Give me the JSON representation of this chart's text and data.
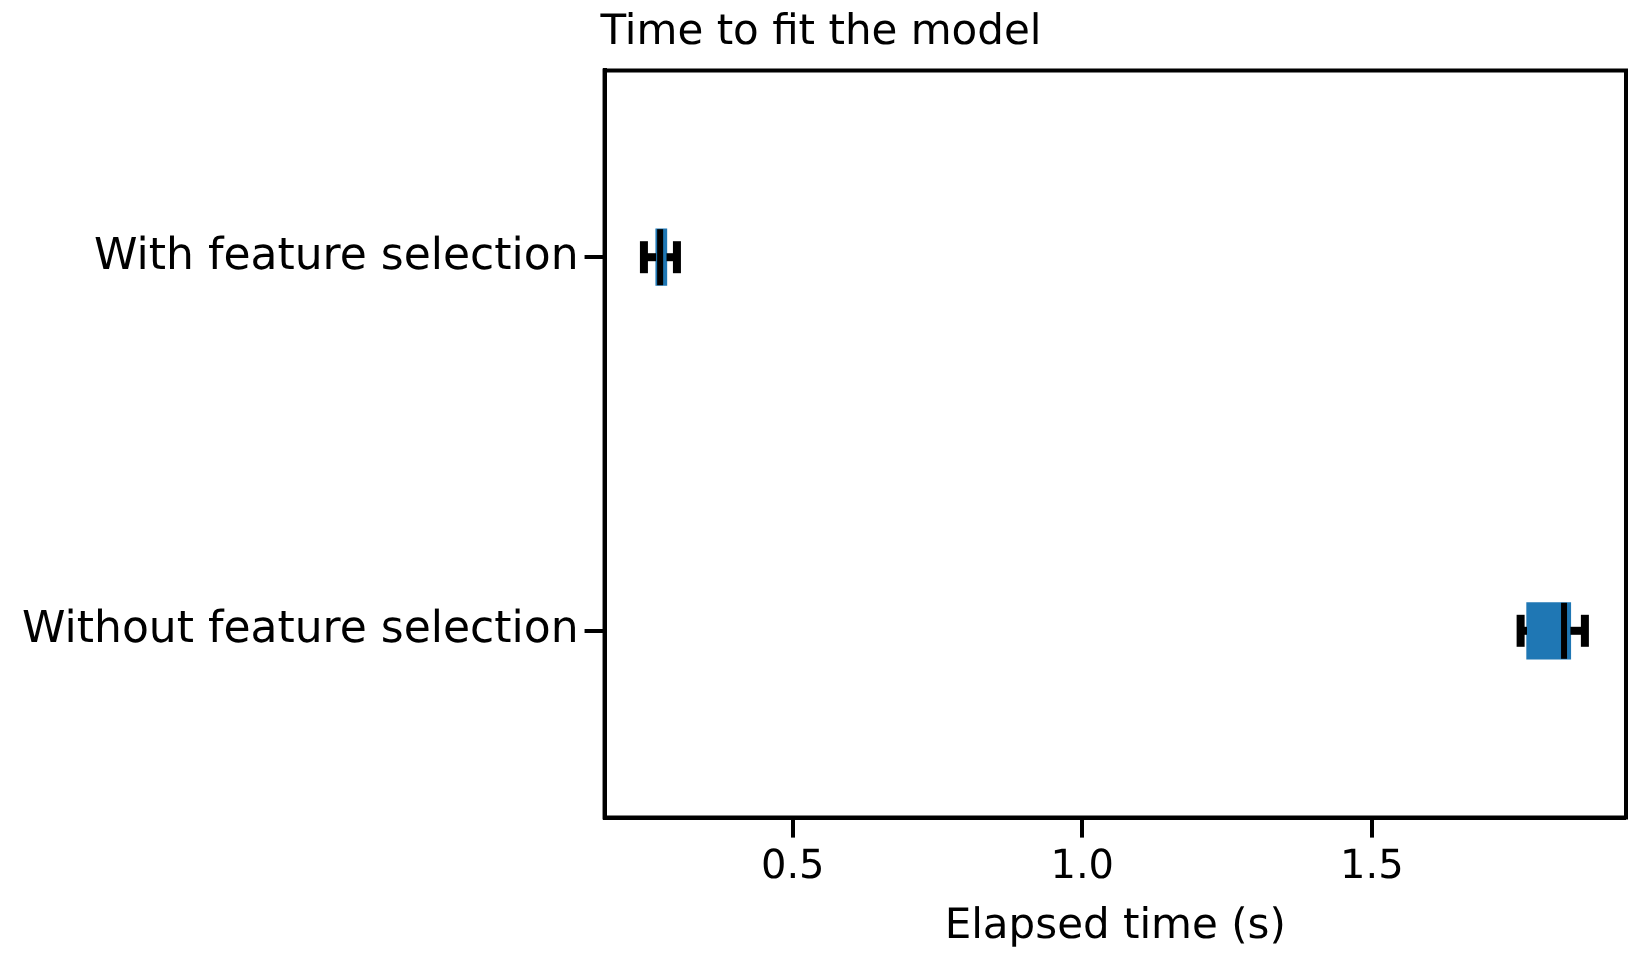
{
  "chart_data": {
    "type": "box",
    "orientation": "horizontal",
    "title": "Time to fit the model",
    "xlabel": "Elapsed time (s)",
    "categories": [
      "With feature selection",
      "Without feature selection"
    ],
    "series": [
      {
        "color": "#1f77b4",
        "boxes": [
          {
            "low": 0.243,
            "q1": 0.264,
            "median": 0.271,
            "q3": 0.282,
            "high": 0.3
          },
          {
            "low": 1.757,
            "q1": 1.768,
            "median": 1.832,
            "q3": 1.843,
            "high": 1.868
          }
        ]
      }
    ],
    "xlim": [
      0.175,
      1.939
    ],
    "xticks": [
      0.5,
      {
        "value": 1,
        "label": "1.0"
      },
      1.5
    ],
    "grid": false,
    "legend": false
  }
}
